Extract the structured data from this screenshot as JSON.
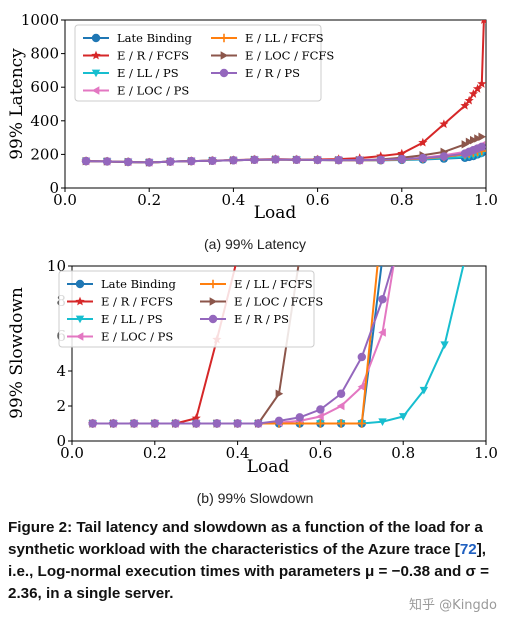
{
  "captions": {
    "a": "(a) 99% Latency",
    "b": "(b) 99% Slowdown"
  },
  "figure_caption": {
    "label": "Figure 2:",
    "text1": "Tail latency and slowdown as a function of the load for a synthetic workload with the characteristics of the Azure trace [",
    "ref": "72",
    "text2": "], i.e., Log-normal execution times with parameters μ = −0.38 and σ = 2.36, in a single server."
  },
  "watermark": "知乎 @Kingdo",
  "colors": {
    "late_binding": "#1f77b4",
    "e_ll_ps": "#17becf",
    "e_ll_fcfs": "#ff7f0e",
    "e_r_ps": "#9467bd",
    "e_r_fcfs": "#d62728",
    "e_loc_ps": "#e377c2",
    "e_loc_fcfs": "#8c564b"
  },
  "chart_data": [
    {
      "type": "line",
      "xlabel": "Load",
      "ylabel": "99% Latency",
      "xlim": [
        0.0,
        1.0
      ],
      "ylim": [
        0,
        1000
      ],
      "xticks": [
        "0.0",
        "0.2",
        "0.4",
        "0.6",
        "0.8",
        "1.0"
      ],
      "yticks": [
        "0",
        "200",
        "400",
        "600",
        "800",
        "1000"
      ],
      "legend_position": "upper-left",
      "x": [
        0.05,
        0.1,
        0.15,
        0.2,
        0.25,
        0.3,
        0.35,
        0.4,
        0.45,
        0.5,
        0.55,
        0.6,
        0.65,
        0.7,
        0.75,
        0.8,
        0.85,
        0.9,
        0.95
      ],
      "series": [
        {
          "name": "Late Binding",
          "key": "late_binding",
          "marker": "circle",
          "x": [
            0.05,
            0.1,
            0.15,
            0.2,
            0.25,
            0.3,
            0.35,
            0.4,
            0.45,
            0.5,
            0.55,
            0.6,
            0.65,
            0.7,
            0.75,
            0.8,
            0.85,
            0.9,
            0.95,
            0.96,
            0.97,
            0.98,
            0.99
          ],
          "values": [
            160,
            158,
            155,
            152,
            157,
            160,
            162,
            165,
            168,
            170,
            168,
            167,
            166,
            165,
            165,
            167,
            170,
            175,
            180,
            185,
            190,
            200,
            210
          ]
        },
        {
          "name": "E / R / FCFS",
          "key": "e_r_fcfs",
          "marker": "star",
          "x": [
            0.05,
            0.1,
            0.15,
            0.2,
            0.25,
            0.3,
            0.35,
            0.4,
            0.45,
            0.5,
            0.55,
            0.6,
            0.65,
            0.7,
            0.75,
            0.8,
            0.85,
            0.9,
            0.95,
            0.96,
            0.97,
            0.98,
            0.99,
            0.995
          ],
          "values": [
            160,
            158,
            155,
            152,
            157,
            160,
            163,
            166,
            170,
            172,
            170,
            170,
            172,
            178,
            190,
            205,
            270,
            380,
            490,
            520,
            560,
            590,
            620,
            1000
          ]
        },
        {
          "name": "E / LL / PS",
          "key": "e_ll_ps",
          "marker": "triangle-down",
          "x": [
            0.05,
            0.1,
            0.15,
            0.2,
            0.25,
            0.3,
            0.35,
            0.4,
            0.45,
            0.5,
            0.55,
            0.6,
            0.65,
            0.7,
            0.75,
            0.8,
            0.85,
            0.9,
            0.95,
            0.96,
            0.97,
            0.98,
            0.99
          ],
          "values": [
            160,
            158,
            155,
            152,
            157,
            160,
            162,
            165,
            168,
            170,
            168,
            167,
            166,
            165,
            165,
            168,
            172,
            178,
            185,
            190,
            195,
            200,
            205
          ]
        },
        {
          "name": "E / LOC / PS",
          "key": "e_loc_ps",
          "marker": "triangle-left",
          "x": [
            0.05,
            0.1,
            0.15,
            0.2,
            0.25,
            0.3,
            0.35,
            0.4,
            0.45,
            0.5,
            0.55,
            0.6,
            0.65,
            0.7,
            0.75,
            0.8,
            0.85,
            0.9,
            0.95,
            0.96,
            0.97,
            0.98,
            0.99
          ],
          "values": [
            160,
            158,
            155,
            152,
            157,
            160,
            162,
            165,
            168,
            170,
            168,
            167,
            166,
            165,
            167,
            172,
            180,
            195,
            215,
            225,
            235,
            245,
            255
          ]
        },
        {
          "name": "E / LL / FCFS",
          "key": "e_ll_fcfs",
          "marker": "plus",
          "x": [
            0.05,
            0.1,
            0.15,
            0.2,
            0.25,
            0.3,
            0.35,
            0.4,
            0.45,
            0.5,
            0.55,
            0.6,
            0.65,
            0.7,
            0.75,
            0.8,
            0.85,
            0.9,
            0.95,
            0.96,
            0.97,
            0.98,
            0.99
          ],
          "values": [
            160,
            158,
            155,
            152,
            157,
            160,
            162,
            165,
            168,
            170,
            168,
            167,
            166,
            165,
            166,
            170,
            175,
            185,
            200,
            205,
            210,
            215,
            220
          ]
        },
        {
          "name": "E / LOC / FCFS",
          "key": "e_loc_fcfs",
          "marker": "triangle-right",
          "x": [
            0.05,
            0.1,
            0.15,
            0.2,
            0.25,
            0.3,
            0.35,
            0.4,
            0.45,
            0.5,
            0.55,
            0.6,
            0.65,
            0.7,
            0.75,
            0.8,
            0.85,
            0.9,
            0.95,
            0.96,
            0.97,
            0.98,
            0.99
          ],
          "values": [
            160,
            158,
            155,
            152,
            157,
            160,
            162,
            165,
            168,
            170,
            168,
            167,
            166,
            166,
            170,
            180,
            195,
            215,
            260,
            275,
            285,
            295,
            305
          ]
        },
        {
          "name": "E / R / PS",
          "key": "e_r_ps",
          "marker": "circle",
          "x": [
            0.05,
            0.1,
            0.15,
            0.2,
            0.25,
            0.3,
            0.35,
            0.4,
            0.45,
            0.5,
            0.55,
            0.6,
            0.65,
            0.7,
            0.75,
            0.8,
            0.85,
            0.9,
            0.95,
            0.96,
            0.97,
            0.98,
            0.99
          ],
          "values": [
            160,
            158,
            155,
            152,
            157,
            160,
            162,
            165,
            168,
            170,
            168,
            167,
            166,
            166,
            168,
            172,
            178,
            188,
            205,
            215,
            225,
            235,
            245
          ]
        }
      ]
    },
    {
      "type": "line",
      "xlabel": "Load",
      "ylabel": "99% Slowdown",
      "xlim": [
        0.0,
        1.0
      ],
      "ylim": [
        0,
        10
      ],
      "xticks": [
        "0.0",
        "0.2",
        "0.4",
        "0.6",
        "0.8",
        "1.0"
      ],
      "yticks": [
        "0",
        "2",
        "4",
        "6",
        "8",
        "10"
      ],
      "legend_position": "upper-left",
      "series": [
        {
          "name": "Late Binding",
          "key": "late_binding",
          "marker": "circle",
          "x": [
            0.05,
            0.1,
            0.15,
            0.2,
            0.25,
            0.3,
            0.35,
            0.4,
            0.45,
            0.5,
            0.55,
            0.6,
            0.65,
            0.7,
            0.75
          ],
          "values": [
            1,
            1,
            1,
            1,
            1,
            1,
            1,
            1,
            1,
            1,
            1,
            1,
            1,
            1,
            10.5
          ]
        },
        {
          "name": "E / R / FCFS",
          "key": "e_r_fcfs",
          "marker": "star",
          "x": [
            0.05,
            0.1,
            0.15,
            0.2,
            0.25,
            0.3,
            0.35,
            0.4
          ],
          "values": [
            1,
            1,
            1,
            1,
            1,
            1.3,
            5.8,
            10.5
          ]
        },
        {
          "name": "E / LL / PS",
          "key": "e_ll_ps",
          "marker": "triangle-down",
          "x": [
            0.05,
            0.1,
            0.15,
            0.2,
            0.25,
            0.3,
            0.35,
            0.4,
            0.45,
            0.5,
            0.55,
            0.6,
            0.65,
            0.7,
            0.75,
            0.8,
            0.85,
            0.9,
            0.95
          ],
          "values": [
            1,
            1,
            1,
            1,
            1,
            1,
            1,
            1,
            1,
            1,
            1,
            1,
            1,
            1,
            1.1,
            1.4,
            2.9,
            5.5,
            10.5
          ]
        },
        {
          "name": "E / LOC / PS",
          "key": "e_loc_ps",
          "marker": "triangle-left",
          "x": [
            0.05,
            0.1,
            0.15,
            0.2,
            0.25,
            0.3,
            0.35,
            0.4,
            0.45,
            0.5,
            0.55,
            0.6,
            0.65,
            0.7,
            0.75,
            0.78
          ],
          "values": [
            1,
            1,
            1,
            1,
            1,
            1,
            1,
            1,
            1,
            1.05,
            1.15,
            1.4,
            2.0,
            3.1,
            6.2,
            10.5
          ]
        },
        {
          "name": "E / LL / FCFS",
          "key": "e_ll_fcfs",
          "marker": "plus",
          "x": [
            0.05,
            0.1,
            0.15,
            0.2,
            0.25,
            0.3,
            0.35,
            0.4,
            0.45,
            0.5,
            0.55,
            0.6,
            0.65,
            0.7,
            0.74
          ],
          "values": [
            1,
            1,
            1,
            1,
            1,
            1,
            1,
            1,
            1,
            1,
            1,
            1,
            1,
            1,
            10.5
          ]
        },
        {
          "name": "E / LOC / FCFS",
          "key": "e_loc_fcfs",
          "marker": "triangle-right",
          "x": [
            0.05,
            0.1,
            0.15,
            0.2,
            0.25,
            0.3,
            0.35,
            0.4,
            0.45,
            0.5,
            0.55
          ],
          "values": [
            1,
            1,
            1,
            1,
            1,
            1,
            1,
            1,
            1,
            2.7,
            10.5
          ]
        },
        {
          "name": "E / R / PS",
          "key": "e_r_ps",
          "marker": "circle",
          "x": [
            0.05,
            0.1,
            0.15,
            0.2,
            0.25,
            0.3,
            0.35,
            0.4,
            0.45,
            0.5,
            0.55,
            0.6,
            0.65,
            0.7,
            0.75,
            0.78
          ],
          "values": [
            1,
            1,
            1,
            1,
            1,
            1,
            1,
            1,
            1,
            1.15,
            1.35,
            1.8,
            2.7,
            4.8,
            8.1,
            10.5
          ]
        }
      ]
    }
  ]
}
